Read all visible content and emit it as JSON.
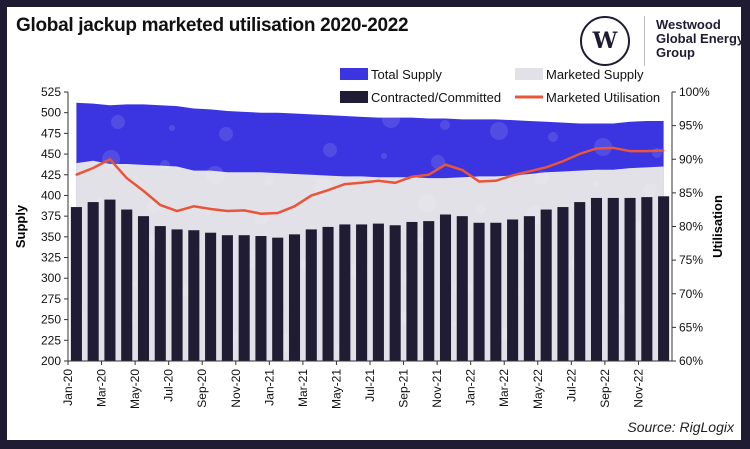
{
  "title": "Global jackup marketed utilisation 2020-2022",
  "logo": {
    "line1": "Westwood",
    "line2": "Global Energy",
    "line3": "Group",
    "mark": "W"
  },
  "source": "Source: RigLogix",
  "colors": {
    "total_supply": "#3a35e0",
    "marketed_supply": "#e2e1e8",
    "contracted": "#1f1c33",
    "utilisation": "#e8553a",
    "frame": "#1f1b33"
  },
  "chart_data": {
    "type": "bar+area+line",
    "categories": [
      "Jan-20",
      "Feb-20",
      "Mar-20",
      "Apr-20",
      "May-20",
      "Jun-20",
      "Jul-20",
      "Aug-20",
      "Sep-20",
      "Oct-20",
      "Nov-20",
      "Dec-20",
      "Jan-21",
      "Feb-21",
      "Mar-21",
      "Apr-21",
      "May-21",
      "Jun-21",
      "Jul-21",
      "Aug-21",
      "Sep-21",
      "Oct-21",
      "Nov-21",
      "Dec-21",
      "Jan-22",
      "Feb-22",
      "Mar-22",
      "Apr-22",
      "May-22",
      "Jun-22",
      "Jul-22",
      "Aug-22",
      "Sep-22",
      "Oct-22",
      "Nov-22",
      "Dec-22"
    ],
    "xtick_labels": [
      "Jan-20",
      "Mar-20",
      "May-20",
      "Jul-20",
      "Sep-20",
      "Nov-20",
      "Jan-21",
      "Mar-21",
      "May-21",
      "Jul-21",
      "Sep-21",
      "Nov-21",
      "Jan-22",
      "Mar-22",
      "May-22",
      "Jul-22",
      "Sep-22",
      "Nov-22"
    ],
    "series": [
      {
        "name": "Total Supply",
        "type": "area",
        "axis": "left",
        "values": [
          512,
          511,
          509,
          510,
          510,
          509,
          508,
          505,
          504,
          502,
          501,
          500,
          500,
          499,
          498,
          497,
          496,
          495,
          494,
          494,
          494,
          493,
          493,
          492,
          492,
          492,
          491,
          490,
          489,
          488,
          487,
          487,
          487,
          489,
          490,
          490
        ]
      },
      {
        "name": "Marketed Supply",
        "type": "area",
        "axis": "left",
        "values": [
          439,
          442,
          438,
          438,
          437,
          436,
          435,
          430,
          430,
          428,
          428,
          428,
          427,
          426,
          425,
          424,
          423,
          423,
          422,
          422,
          422,
          421,
          421,
          422,
          423,
          423,
          424,
          426,
          428,
          429,
          430,
          431,
          431,
          433,
          434,
          435
        ]
      },
      {
        "name": "Contracted/Committed",
        "type": "bar",
        "axis": "left",
        "values": [
          386,
          392,
          395,
          383,
          375,
          363,
          359,
          358,
          355,
          352,
          352,
          351,
          349,
          353,
          359,
          362,
          365,
          365,
          366,
          364,
          368,
          369,
          377,
          375,
          367,
          367,
          371,
          375,
          383,
          386,
          392,
          397,
          397,
          397,
          398,
          399
        ]
      },
      {
        "name": "Marketed Utilisation",
        "type": "line",
        "axis": "right",
        "values": [
          87.7,
          88.7,
          90.0,
          87.2,
          85.3,
          83.2,
          82.3,
          83.0,
          82.6,
          82.3,
          82.4,
          81.9,
          82.0,
          83.0,
          84.6,
          85.4,
          86.3,
          86.5,
          86.8,
          86.5,
          87.4,
          87.7,
          89.2,
          88.4,
          86.7,
          86.8,
          87.6,
          88.2,
          88.8,
          89.7,
          90.8,
          91.6,
          91.7,
          91.2,
          91.2,
          91.3
        ]
      }
    ],
    "ylabel": "Supply",
    "ylim": [
      200,
      525
    ],
    "yticks": [
      200,
      225,
      250,
      275,
      300,
      325,
      350,
      375,
      400,
      425,
      450,
      475,
      500,
      525
    ],
    "y2label": "Utilisation",
    "y2lim": [
      60,
      100
    ],
    "y2ticks": [
      "60%",
      "65%",
      "70%",
      "75%",
      "80%",
      "85%",
      "90%",
      "95%",
      "100%"
    ],
    "legend": "top",
    "grid": false
  }
}
